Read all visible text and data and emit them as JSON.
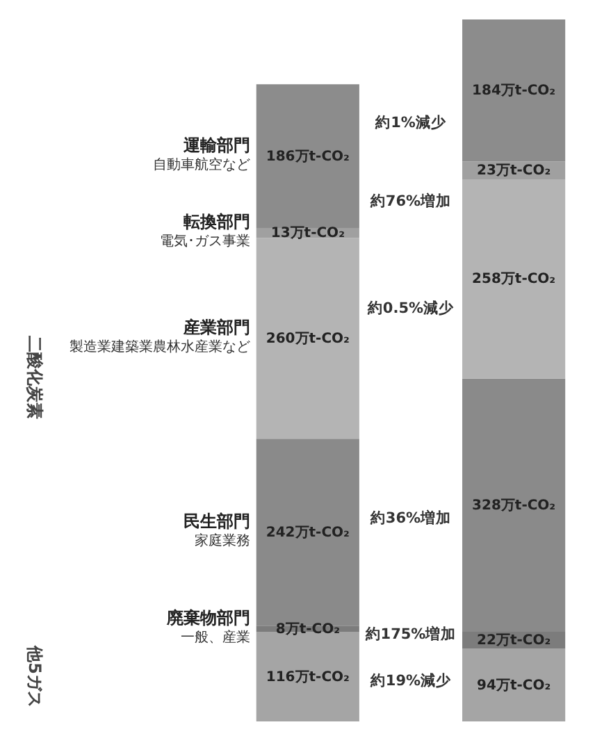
{
  "chart_data": {
    "type": "bar",
    "stacked": true,
    "tick_labels": false,
    "categories": [
      null,
      null
    ],
    "series": [
      {
        "color": "#a5a5a5",
        "values": [
          116,
          94
        ],
        "value_labels": [
          "116万t-CO₂",
          "94万t-CO₂"
        ]
      },
      {
        "name": "廃棄物部門",
        "color": "#7c7c7c",
        "values": [
          8,
          22
        ],
        "value_labels": [
          "8万t-CO₂",
          "22万t-CO₂"
        ]
      },
      {
        "name": "民生部門",
        "color": "#8a8a8a",
        "values": [
          242,
          328
        ],
        "value_labels": [
          "242万t-CO₂",
          "328万t-CO₂"
        ]
      },
      {
        "name": "産業部門",
        "color": "#b4b4b4",
        "values": [
          260,
          258
        ],
        "value_labels": [
          "260万t-CO₂",
          "258万t-CO₂"
        ]
      },
      {
        "name": "転換部門",
        "color": "#a0a0a0",
        "values": [
          13,
          23
        ],
        "value_labels": [
          "13万t-CO₂",
          "23万t-CO₂"
        ]
      },
      {
        "name": "運輸部門",
        "color": "#8c8c8c",
        "values": [
          186,
          184
        ],
        "value_labels": [
          "186万t-CO₂",
          "184万t-CO₂"
        ]
      }
    ],
    "annotations": [
      "約19%減少",
      "約175%増加",
      "約36%増加",
      "約0.5%減少",
      "約76%増加",
      "約1%減少",
      "一般、産業",
      "家庭業務",
      "製造業建築業農林水産業など",
      "電気･ガス事業",
      "自動車航空など",
      "二酸化炭素",
      "他5ガス"
    ]
  }
}
